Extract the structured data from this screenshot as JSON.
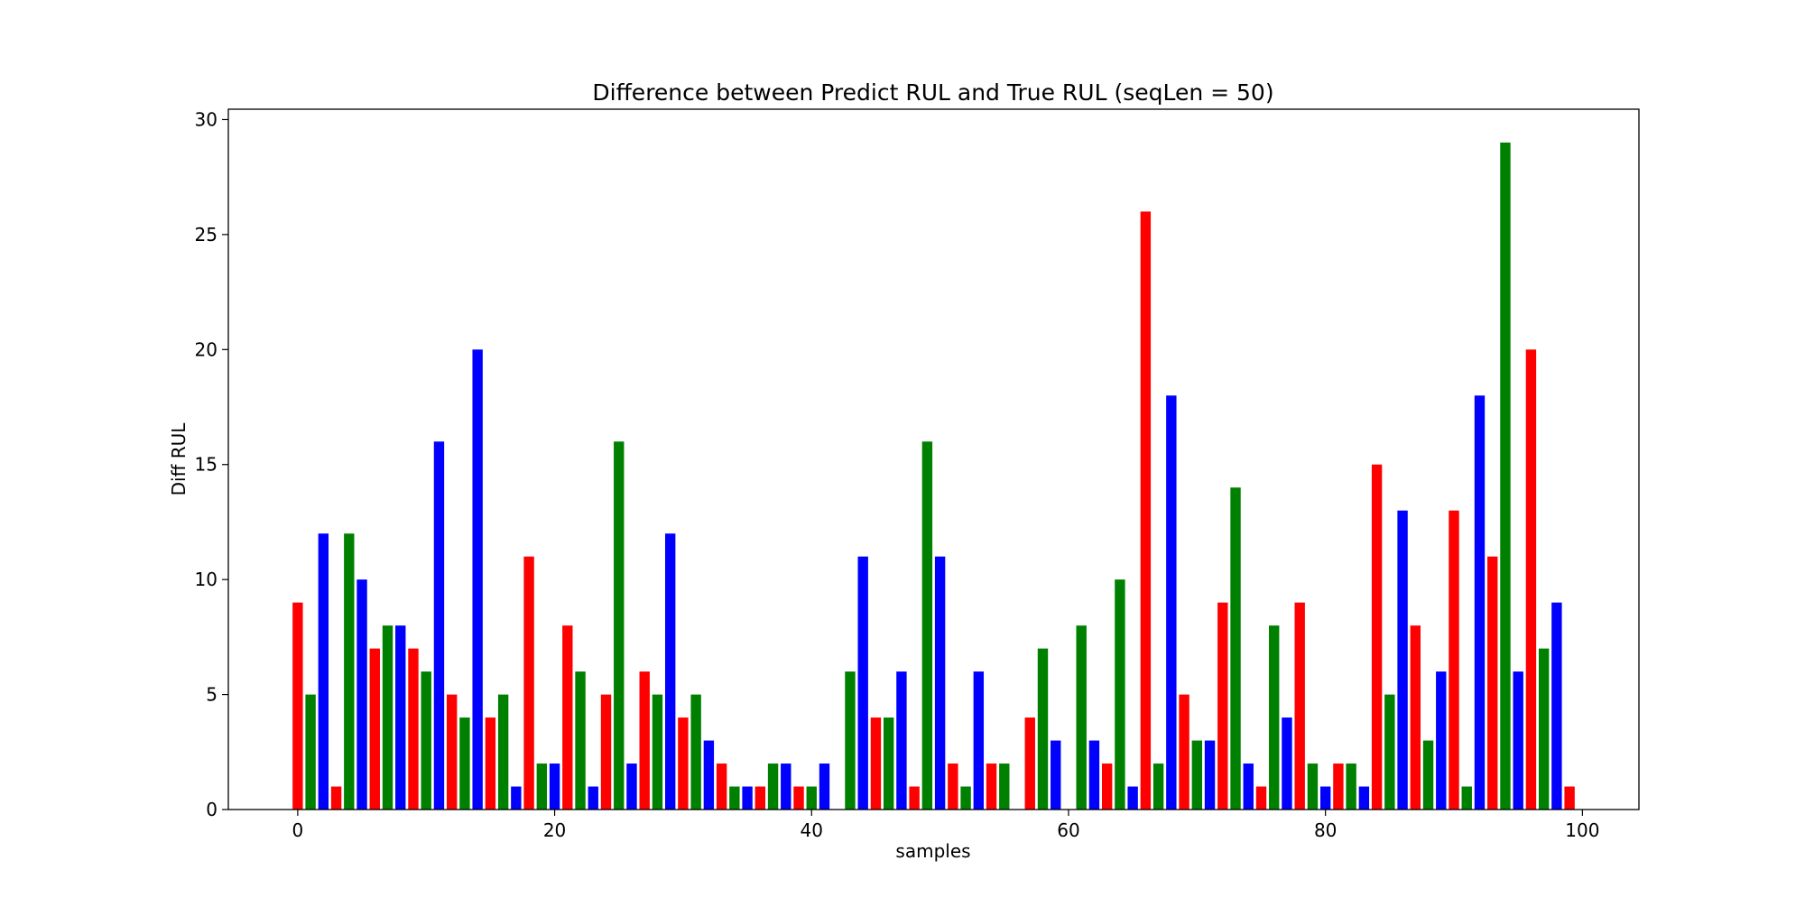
{
  "chart_data": {
    "type": "bar",
    "title": "Difference between Predict RUL and True RUL (seqLen = 50)",
    "xlabel": "samples",
    "ylabel": "Diff RUL",
    "xlim": [
      -5.4,
      104.4
    ],
    "ylim": [
      0,
      30.45
    ],
    "xticks": [
      0,
      20,
      40,
      60,
      80,
      100
    ],
    "yticks": [
      0,
      5,
      10,
      15,
      20,
      25,
      30
    ],
    "grid": false,
    "colors": [
      "#ff0000",
      "#008000",
      "#0000ff"
    ],
    "x": [
      0,
      1,
      2,
      3,
      4,
      5,
      6,
      7,
      8,
      9,
      10,
      11,
      12,
      13,
      14,
      15,
      16,
      17,
      18,
      19,
      20,
      21,
      22,
      23,
      24,
      25,
      26,
      27,
      28,
      29,
      30,
      31,
      32,
      33,
      34,
      35,
      36,
      37,
      38,
      39,
      40,
      41,
      42,
      43,
      44,
      45,
      46,
      47,
      48,
      49,
      50,
      51,
      52,
      53,
      54,
      55,
      56,
      57,
      58,
      59,
      60,
      61,
      62,
      63,
      64,
      65,
      66,
      67,
      68,
      69,
      70,
      71,
      72,
      73,
      74,
      75,
      76,
      77,
      78,
      79,
      80,
      81,
      82,
      83,
      84,
      85,
      86,
      87,
      88,
      89,
      90,
      91,
      92,
      93,
      94,
      95,
      96,
      97,
      98,
      99
    ],
    "values": [
      9,
      5,
      12,
      1,
      12,
      10,
      7,
      8,
      8,
      7,
      6,
      16,
      5,
      4,
      20,
      4,
      5,
      1,
      11,
      2,
      2,
      8,
      6,
      1,
      5,
      16,
      2,
      6,
      5,
      12,
      4,
      5,
      3,
      2,
      1,
      1,
      1,
      2,
      2,
      1,
      1,
      2,
      0,
      6,
      11,
      4,
      4,
      6,
      1,
      16,
      11,
      2,
      1,
      6,
      2,
      2,
      0,
      4,
      7,
      3,
      0,
      8,
      3,
      2,
      10,
      1,
      26,
      2,
      18,
      5,
      3,
      3,
      9,
      14,
      2,
      1,
      8,
      4,
      9,
      2,
      1,
      2,
      2,
      1,
      15,
      5,
      13,
      8,
      3,
      6,
      13,
      1,
      18,
      11,
      29,
      6,
      20,
      7,
      9,
      1
    ]
  }
}
